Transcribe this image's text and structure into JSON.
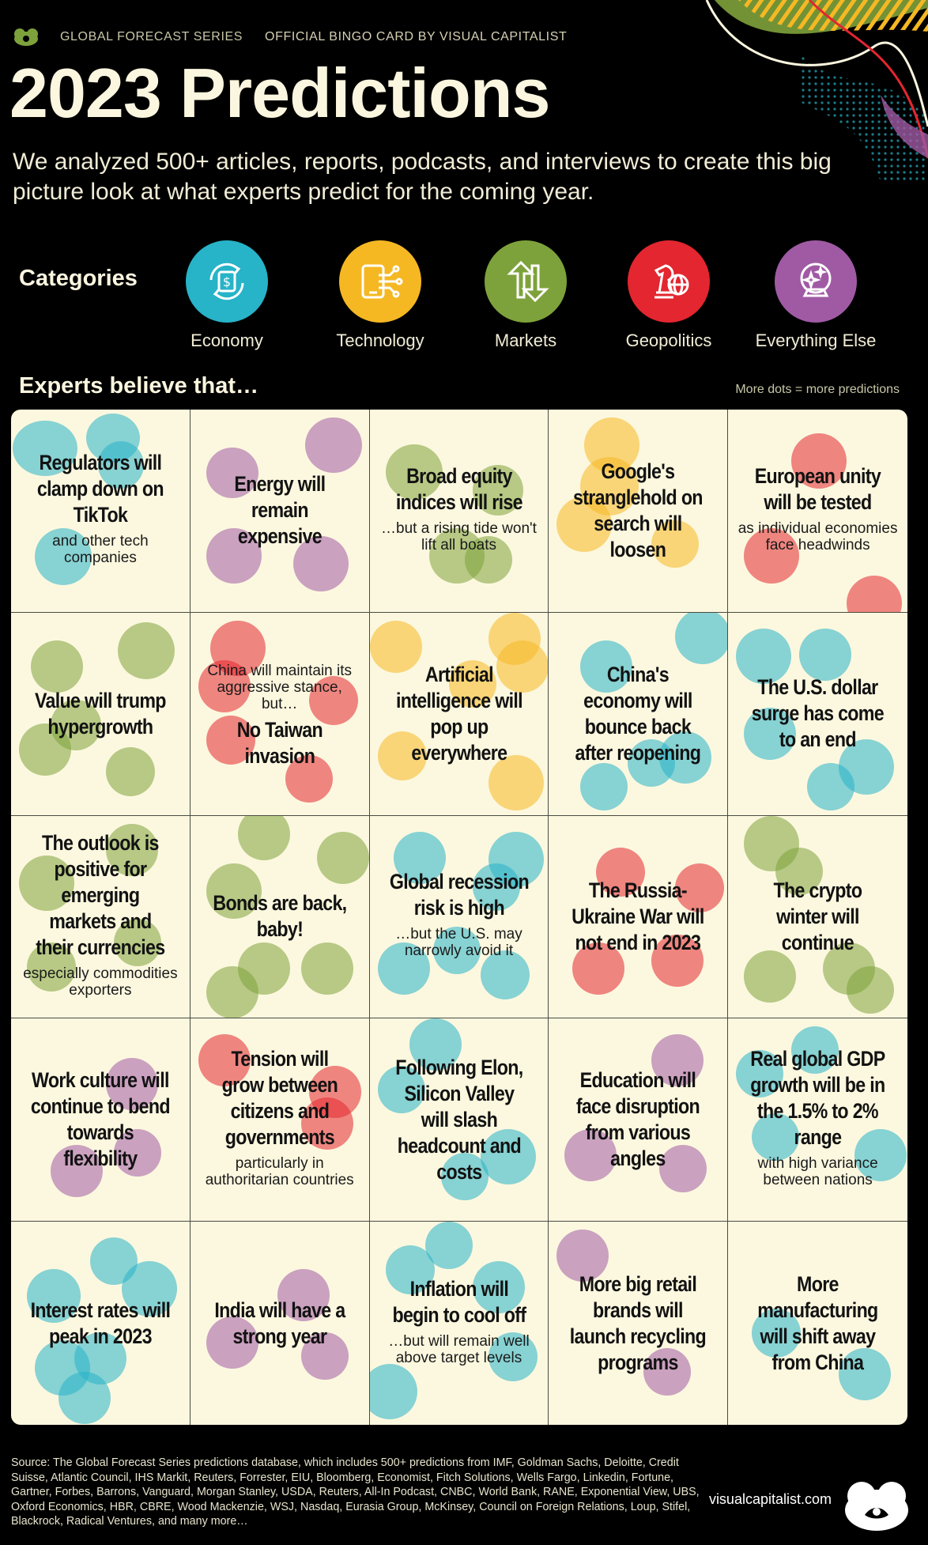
{
  "header": {
    "series": "GLOBAL FORECAST SERIES",
    "official": "OFFICIAL BINGO CARD BY VISUAL CAPITALIST",
    "title": "2023 Predictions",
    "subtitle": "We analyzed 500+ articles, reports, podcasts, and interviews to create this big picture look at what experts predict for the coming year."
  },
  "categories": {
    "title": "Categories",
    "items": [
      {
        "label": "Economy",
        "color": "#27b3c8",
        "icon": "currency-exchange-icon"
      },
      {
        "label": "Technology",
        "color": "#f5b823",
        "icon": "circuit-device-icon"
      },
      {
        "label": "Markets",
        "color": "#7ea23b",
        "icon": "up-down-arrows-icon"
      },
      {
        "label": "Geopolitics",
        "color": "#e3262f",
        "icon": "chess-globe-icon"
      },
      {
        "label": "Everything Else",
        "color": "#a05aa4",
        "icon": "crystal-ball-icon"
      }
    ]
  },
  "board": {
    "title": "Experts believe that…",
    "note": "More dots = more predictions",
    "cells": [
      {
        "pre": "",
        "main": "Regulators will clamp down on TikTok",
        "sub": "and other tech companies"
      },
      {
        "pre": "",
        "main": "Energy will remain expensive",
        "sub": ""
      },
      {
        "pre": "",
        "main": "Broad equity indices will rise",
        "sub": "…but a rising tide won't lift all boats"
      },
      {
        "pre": "",
        "main": "Google's stranglehold on search will loosen",
        "sub": ""
      },
      {
        "pre": "",
        "main": "European unity will be tested",
        "sub": "as individual economies face headwinds"
      },
      {
        "pre": "",
        "main": "Value will trump hypergrowth",
        "sub": ""
      },
      {
        "pre": "China will maintain its aggressive stance, but…",
        "main": "No Taiwan invasion",
        "sub": ""
      },
      {
        "pre": "",
        "main": "Artificial intelligence will pop up everywhere",
        "sub": ""
      },
      {
        "pre": "",
        "main": "China's economy will bounce back after reopening",
        "sub": ""
      },
      {
        "pre": "",
        "main": "The U.S. dollar surge has come to an end",
        "sub": ""
      },
      {
        "pre": "",
        "main": "The outlook is positive for emerging markets and their currencies",
        "sub": "especially commodities exporters"
      },
      {
        "pre": "",
        "main": "Bonds are back, baby!",
        "sub": ""
      },
      {
        "pre": "",
        "main": "Global recession risk is high",
        "sub": "…but the U.S. may narrowly avoid it"
      },
      {
        "pre": "",
        "main": "The Russia-Ukraine War will not end in 2023",
        "sub": ""
      },
      {
        "pre": "",
        "main": "The crypto winter will continue",
        "sub": ""
      },
      {
        "pre": "",
        "main": "Work culture will continue to bend towards flexibility",
        "sub": ""
      },
      {
        "pre": "",
        "main": "Tension will grow between citizens and governments",
        "sub": "particularly in authoritarian countries"
      },
      {
        "pre": "",
        "main": "Following Elon, Silicon Valley will slash headcount and costs",
        "sub": ""
      },
      {
        "pre": "",
        "main": "Education will face disruption from various angles",
        "sub": ""
      },
      {
        "pre": "",
        "main": "Real global GDP growth will be in the 1.5% to 2% range",
        "sub": "with high variance between nations"
      },
      {
        "pre": "",
        "main": "Interest rates will peak in 2023",
        "sub": ""
      },
      {
        "pre": "",
        "main": "India will have a strong year",
        "sub": ""
      },
      {
        "pre": "",
        "main": "Inflation will begin to cool off",
        "sub": "…but will remain well above target levels"
      },
      {
        "pre": "",
        "main": "More big retail brands will launch recycling programs",
        "sub": ""
      },
      {
        "pre": "",
        "main": "More manufacturing will shift away from China",
        "sub": ""
      }
    ]
  },
  "footer": {
    "source": "Source: The Global Forecast Series predictions database, which includes 500+ predictions from IMF, Goldman Sachs, Deloitte, Credit Suisse, Atlantic Council, IHS Markit, Reuters, Forrester, EIU, Bloomberg, Economist, Fitch Solutions, Wells Fargo, Linkedin, Fortune, Gartner, Forbes, Barrons, Vanguard, Morgan Stanley, USDA, Reuters, All-In Podcast, CNBC, World Bank, RANE, Exponential View, UBS, Oxford Economics, HBR, CBRE, Wood Mackenzie, WSJ, Nasdaq, Eurasia Group, McKinsey, Council on Foreign Relations, Loup, Stifel, Blackrock, Radical Ventures, and many more…",
    "site": "visualcapitalist.com"
  }
}
